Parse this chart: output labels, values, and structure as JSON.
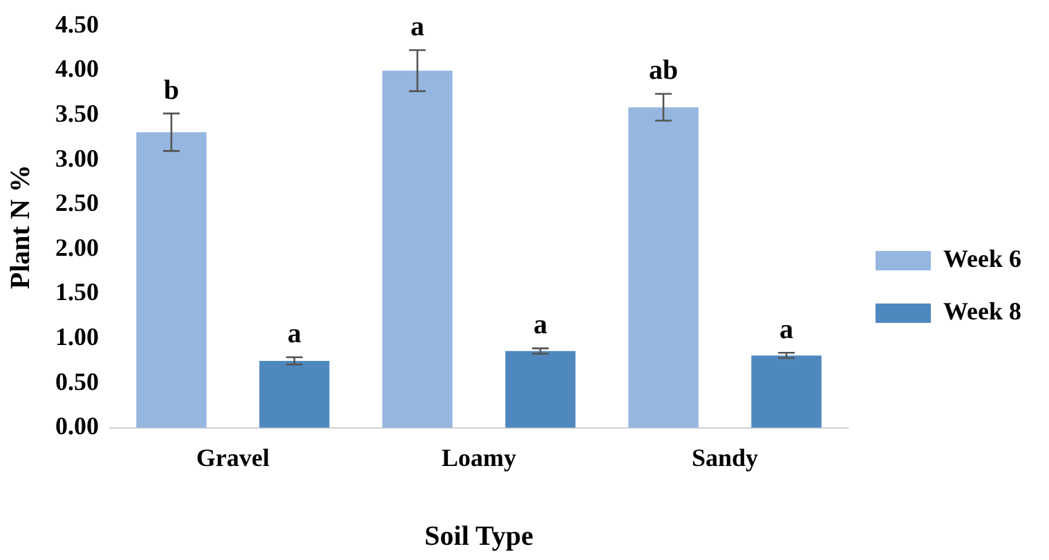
{
  "chart_data": {
    "type": "bar",
    "xlabel": "Soil Type",
    "ylabel": "Plant N %",
    "categories": [
      "Gravel",
      "Loamy",
      "Sandy"
    ],
    "series": [
      {
        "name": "Week 6",
        "color": "#95b6df",
        "values": [
          3.31,
          4.0,
          3.59
        ],
        "errors": [
          0.21,
          0.23,
          0.15
        ]
      },
      {
        "name": "Week 8",
        "color": "#4f88bf",
        "values": [
          0.75,
          0.86,
          0.81
        ],
        "errors": [
          0.04,
          0.03,
          0.03
        ]
      }
    ],
    "annotations": [
      "b",
      "a",
      "ab",
      "a",
      "a",
      "a"
    ],
    "ylim": [
      0,
      4.5
    ],
    "yticks": [
      {
        "value": 0,
        "label": "0.00"
      },
      {
        "value": 0.5,
        "label": "0.50"
      },
      {
        "value": 1,
        "label": "1.00"
      },
      {
        "value": 1.5,
        "label": "1.50"
      },
      {
        "value": 2,
        "label": "2.00"
      },
      {
        "value": 2.5,
        "label": "2.50"
      },
      {
        "value": 3,
        "label": "3.00"
      },
      {
        "value": 3.5,
        "label": "3.50"
      },
      {
        "value": 4,
        "label": "4.00"
      },
      {
        "value": 4.5,
        "label": "4.50"
      }
    ],
    "grid": false,
    "legend": "right"
  }
}
